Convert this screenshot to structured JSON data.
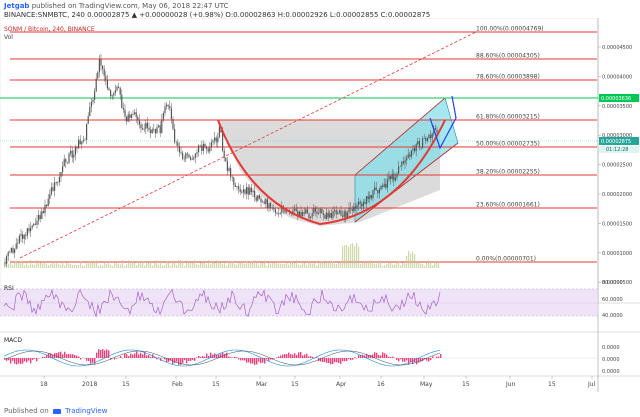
{
  "header": {
    "user": "Jetgab",
    "published": "published on TradingView.com, May 06, 2018 22:47 UTC",
    "ohlc_line": "BINANCE:SNMBTC, 240  0.00002875  ▲ +0.00000028 (+0.98%)  O:0.00002863  H:0.00002926  L:0.00002855  C:0.00002875"
  },
  "legend": {
    "symbol": "SONM / Bitcoin, 240, BINANCE",
    "vol": "Vol"
  },
  "price_axis": {
    "ticks": [
      "0.00004500",
      "0.00004000",
      "0.00003500",
      "0.00003000",
      "0.00002500",
      "0.00002000",
      "0.00001500",
      "0.00001000",
      "0.00000500"
    ],
    "green_level": "0.00003636",
    "last_price": "0.00002875",
    "countdown": "01:12:28"
  },
  "fib_levels": [
    {
      "pct": "100.00%",
      "price": "(0.00004769)"
    },
    {
      "pct": "88.60%",
      "price": "(0.00004305)"
    },
    {
      "pct": "78.60%",
      "price": "(0.00003898)"
    },
    {
      "pct": "61.80%",
      "price": "(0.00003215)"
    },
    {
      "pct": "50.00%",
      "price": "(0.00002735)"
    },
    {
      "pct": "38.20%",
      "price": "(0.00002255)"
    },
    {
      "pct": "23.60%",
      "price": "(0.00001661)"
    },
    {
      "pct": "0.00%",
      "price": "(0.00000701)"
    }
  ],
  "rsi": {
    "label": "RSI",
    "ticks": [
      "80.0000",
      "60.0000",
      "40.0000"
    ]
  },
  "macd": {
    "label": "MACD",
    "ticks": [
      "0.0000",
      "0.0000",
      "0.0000"
    ]
  },
  "time_axis": {
    "labels": [
      "18",
      "2018",
      "15",
      "Feb",
      "15",
      "Mar",
      "15",
      "Apr",
      "16",
      "May",
      "15",
      "Jun",
      "15",
      "Jul"
    ]
  },
  "footer": {
    "published_by": "Published on",
    "brand": "TradingView"
  },
  "colors": {
    "fib_line": "#e53935",
    "green_line": "#00c853",
    "candles": "#555555",
    "cup_fill": "#bdbdbd",
    "channel_fill": "#80deea",
    "arc": "#e53935",
    "projection": "#1e40ff",
    "rsi_band": "#e8d7f5",
    "rsi_line": "#9c4fc2",
    "macd_hist": "#e91e63",
    "macd_line": "#1e88e5"
  }
}
